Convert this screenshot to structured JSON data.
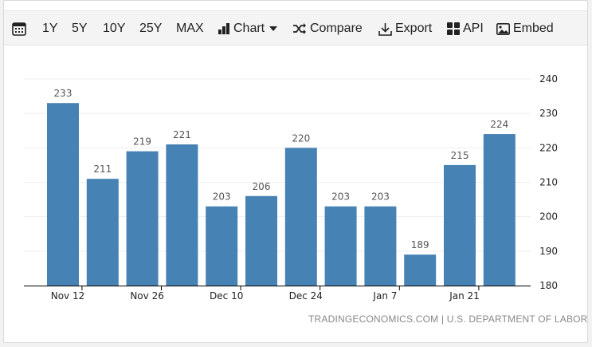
{
  "toolbar": {
    "ranges": [
      "1Y",
      "5Y",
      "10Y",
      "25Y",
      "MAX"
    ],
    "chart_label": "Chart",
    "compare_label": "Compare",
    "export_label": "Export",
    "api_label": "API",
    "embed_label": "Embed"
  },
  "source": "TRADINGECONOMICS.COM | U.S. DEPARTMENT OF LABOR",
  "colors": {
    "bar": "#4682b4",
    "grid": "#eeeeee",
    "axis": "#000000",
    "label": "#555555"
  },
  "chart_data": {
    "type": "bar",
    "values": [
      233,
      211,
      219,
      221,
      203,
      206,
      220,
      203,
      203,
      189,
      215,
      224
    ],
    "x_tick_labels": [
      "Nov 12",
      "Nov 26",
      "Dec 10",
      "Dec 24",
      "Jan 7",
      "Jan 21"
    ],
    "x_tick_bar_index": [
      0,
      2,
      4,
      6,
      8,
      10
    ],
    "ylim": [
      180,
      240
    ],
    "y_ticks": [
      180,
      190,
      200,
      210,
      220,
      230,
      240
    ],
    "y_axis_side": "right",
    "grid": true,
    "data_labels": true
  }
}
